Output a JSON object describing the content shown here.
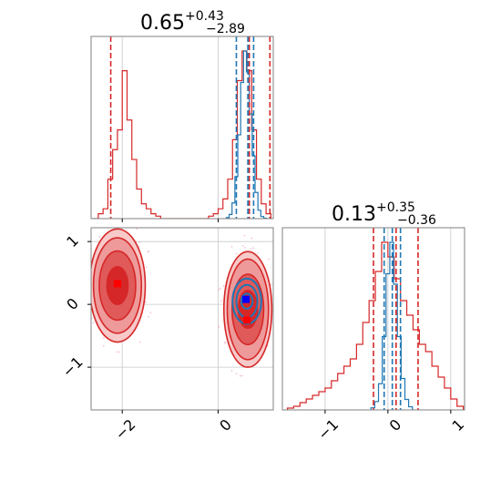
{
  "chart_data": [
    {
      "panel": "top-left",
      "type": "histogram",
      "title": {
        "value": "0.65",
        "upper": "+0.43",
        "lower": "−2.89"
      },
      "xlim": [
        -2.65,
        1.15
      ],
      "grid": true,
      "x_tick_values": [
        -2,
        0
      ],
      "series": [
        {
          "color": "#d62728",
          "x": [
            -2.55,
            -2.45,
            -2.35,
            -2.25,
            -2.15,
            -2.05,
            -1.95,
            -1.85,
            -1.75,
            -1.65,
            -1.55,
            -1.45,
            -1.35,
            -1.25,
            -1.15,
            -1.05,
            -0.95,
            -0.85,
            -0.75,
            -0.65,
            -0.55,
            -0.45,
            -0.35,
            -0.25,
            -0.15,
            -0.05,
            0.05,
            0.15,
            0.25,
            0.35,
            0.45,
            0.55,
            0.65,
            0.75,
            0.85,
            0.95,
            1.05
          ],
          "values": [
            0,
            1,
            2,
            8,
            14,
            18,
            30,
            20,
            12,
            6,
            3,
            2,
            1,
            0.5,
            0,
            0,
            0,
            0,
            0,
            0,
            0,
            0,
            0,
            0,
            0.5,
            1,
            2,
            4,
            8,
            16,
            28,
            34,
            30,
            18,
            8,
            3,
            1
          ],
          "quantiles": [
            -2.24,
            0.65,
            1.08
          ]
        },
        {
          "color": "#1f77b4",
          "x": [
            0.2,
            0.26,
            0.32,
            0.38,
            0.44,
            0.5,
            0.56,
            0.62,
            0.68,
            0.74,
            0.8,
            0.86,
            0.92,
            0.98
          ],
          "values": [
            1,
            4,
            15,
            40,
            80,
            130,
            160,
            140,
            100,
            60,
            25,
            8,
            2,
            0.5
          ],
          "quantiles": [
            0.38,
            0.62,
            0.74
          ]
        }
      ]
    },
    {
      "panel": "bottom-left",
      "type": "contour",
      "xlim": [
        -2.65,
        1.15
      ],
      "ylim": [
        -1.68,
        1.22
      ],
      "grid": true,
      "x_tick_values": [
        -2,
        0
      ],
      "y_tick_values": [
        -1,
        0,
        1
      ],
      "contours": [
        {
          "color": "#d62728",
          "cx": -2.1,
          "cy": 0.3,
          "rx": [
            0.58,
            0.5,
            0.38,
            0.22
          ],
          "ry": [
            0.9,
            0.76,
            0.55,
            0.3
          ]
        },
        {
          "color": "#d62728",
          "cx": 0.62,
          "cy": -0.08,
          "rx": [
            0.5,
            0.43,
            0.33,
            0.2
          ],
          "ry": [
            0.92,
            0.8,
            0.56,
            0.3
          ]
        },
        {
          "color": "#1f77b4",
          "cx": 0.6,
          "cy": 0.05,
          "rx": [
            0.3,
            0.22,
            0.12
          ],
          "ry": [
            0.36,
            0.26,
            0.12
          ]
        }
      ],
      "markers": [
        {
          "color": "#ff0000",
          "x": -2.1,
          "y": 0.33
        },
        {
          "color": "#ff0000",
          "x": 0.6,
          "y": -0.25
        },
        {
          "color": "#0000ff",
          "x": 0.58,
          "y": 0.08
        }
      ]
    },
    {
      "panel": "bottom-right",
      "type": "histogram",
      "title": {
        "value": "0.13",
        "upper": "+0.35",
        "lower": "−0.36"
      },
      "xlim": [
        -1.68,
        1.22
      ],
      "grid": true,
      "x_tick_values": [
        -1,
        0,
        1
      ],
      "series": [
        {
          "color": "#d62728",
          "x": [
            -1.55,
            -1.45,
            -1.35,
            -1.25,
            -1.15,
            -1.05,
            -0.95,
            -0.85,
            -0.75,
            -0.65,
            -0.55,
            -0.45,
            -0.35,
            -0.25,
            -0.15,
            -0.05,
            0.05,
            0.15,
            0.25,
            0.35,
            0.45,
            0.55,
            0.65,
            0.75,
            0.85,
            0.95,
            1.05,
            1.15
          ],
          "values": [
            0.5,
            1,
            2,
            3,
            4,
            5,
            6,
            8,
            10,
            12,
            14,
            18,
            24,
            30,
            38,
            46,
            42,
            36,
            30,
            26,
            22,
            18,
            16,
            12,
            9,
            6,
            3,
            1
          ],
          "quantiles": [
            -0.23,
            0.13,
            0.48
          ]
        },
        {
          "color": "#1f77b4",
          "x": [
            -0.24,
            -0.18,
            -0.12,
            -0.06,
            0.0,
            0.06,
            0.12,
            0.18,
            0.24,
            0.3,
            0.36
          ],
          "values": [
            2,
            8,
            25,
            70,
            130,
            160,
            120,
            70,
            30,
            10,
            3
          ],
          "quantiles": [
            -0.06,
            0.07,
            0.2
          ]
        }
      ]
    }
  ]
}
